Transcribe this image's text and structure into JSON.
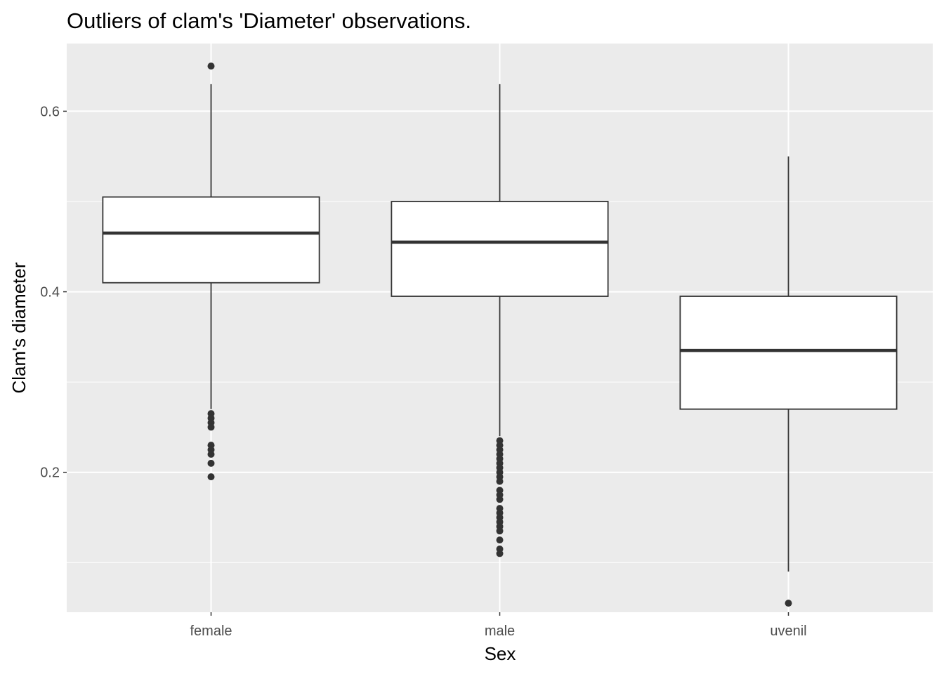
{
  "chart_data": {
    "type": "box",
    "title": "Outliers of clam's 'Diameter' observations.",
    "xlabel": "Sex",
    "ylabel": "Clam's diameter",
    "categories": [
      "female",
      "male",
      "uvenil"
    ],
    "ylim": [
      0.045,
      0.675
    ],
    "yticks": [
      0.2,
      0.4,
      0.6
    ],
    "grid": true,
    "legend": "none",
    "colors": {
      "panel": "#ebebeb",
      "grid": "#ffffff",
      "box_fill": "#ffffff",
      "box_stroke": "#333333",
      "point": "#333333"
    },
    "boxes": [
      {
        "category": "female",
        "q1": 0.41,
        "median": 0.465,
        "q3": 0.505,
        "whisker_low": 0.27,
        "whisker_high": 0.63,
        "outliers": [
          0.65,
          0.265,
          0.26,
          0.255,
          0.25,
          0.23,
          0.225,
          0.22,
          0.21,
          0.195
        ]
      },
      {
        "category": "male",
        "q1": 0.395,
        "median": 0.455,
        "q3": 0.5,
        "whisker_low": 0.24,
        "whisker_high": 0.63,
        "outliers": [
          0.235,
          0.23,
          0.225,
          0.22,
          0.215,
          0.21,
          0.205,
          0.2,
          0.195,
          0.19,
          0.18,
          0.175,
          0.17,
          0.16,
          0.155,
          0.15,
          0.145,
          0.14,
          0.135,
          0.125,
          0.115,
          0.11
        ]
      },
      {
        "category": "uvenil",
        "q1": 0.27,
        "median": 0.335,
        "q3": 0.395,
        "whisker_low": 0.09,
        "whisker_high": 0.55,
        "outliers": [
          0.055
        ]
      }
    ]
  }
}
